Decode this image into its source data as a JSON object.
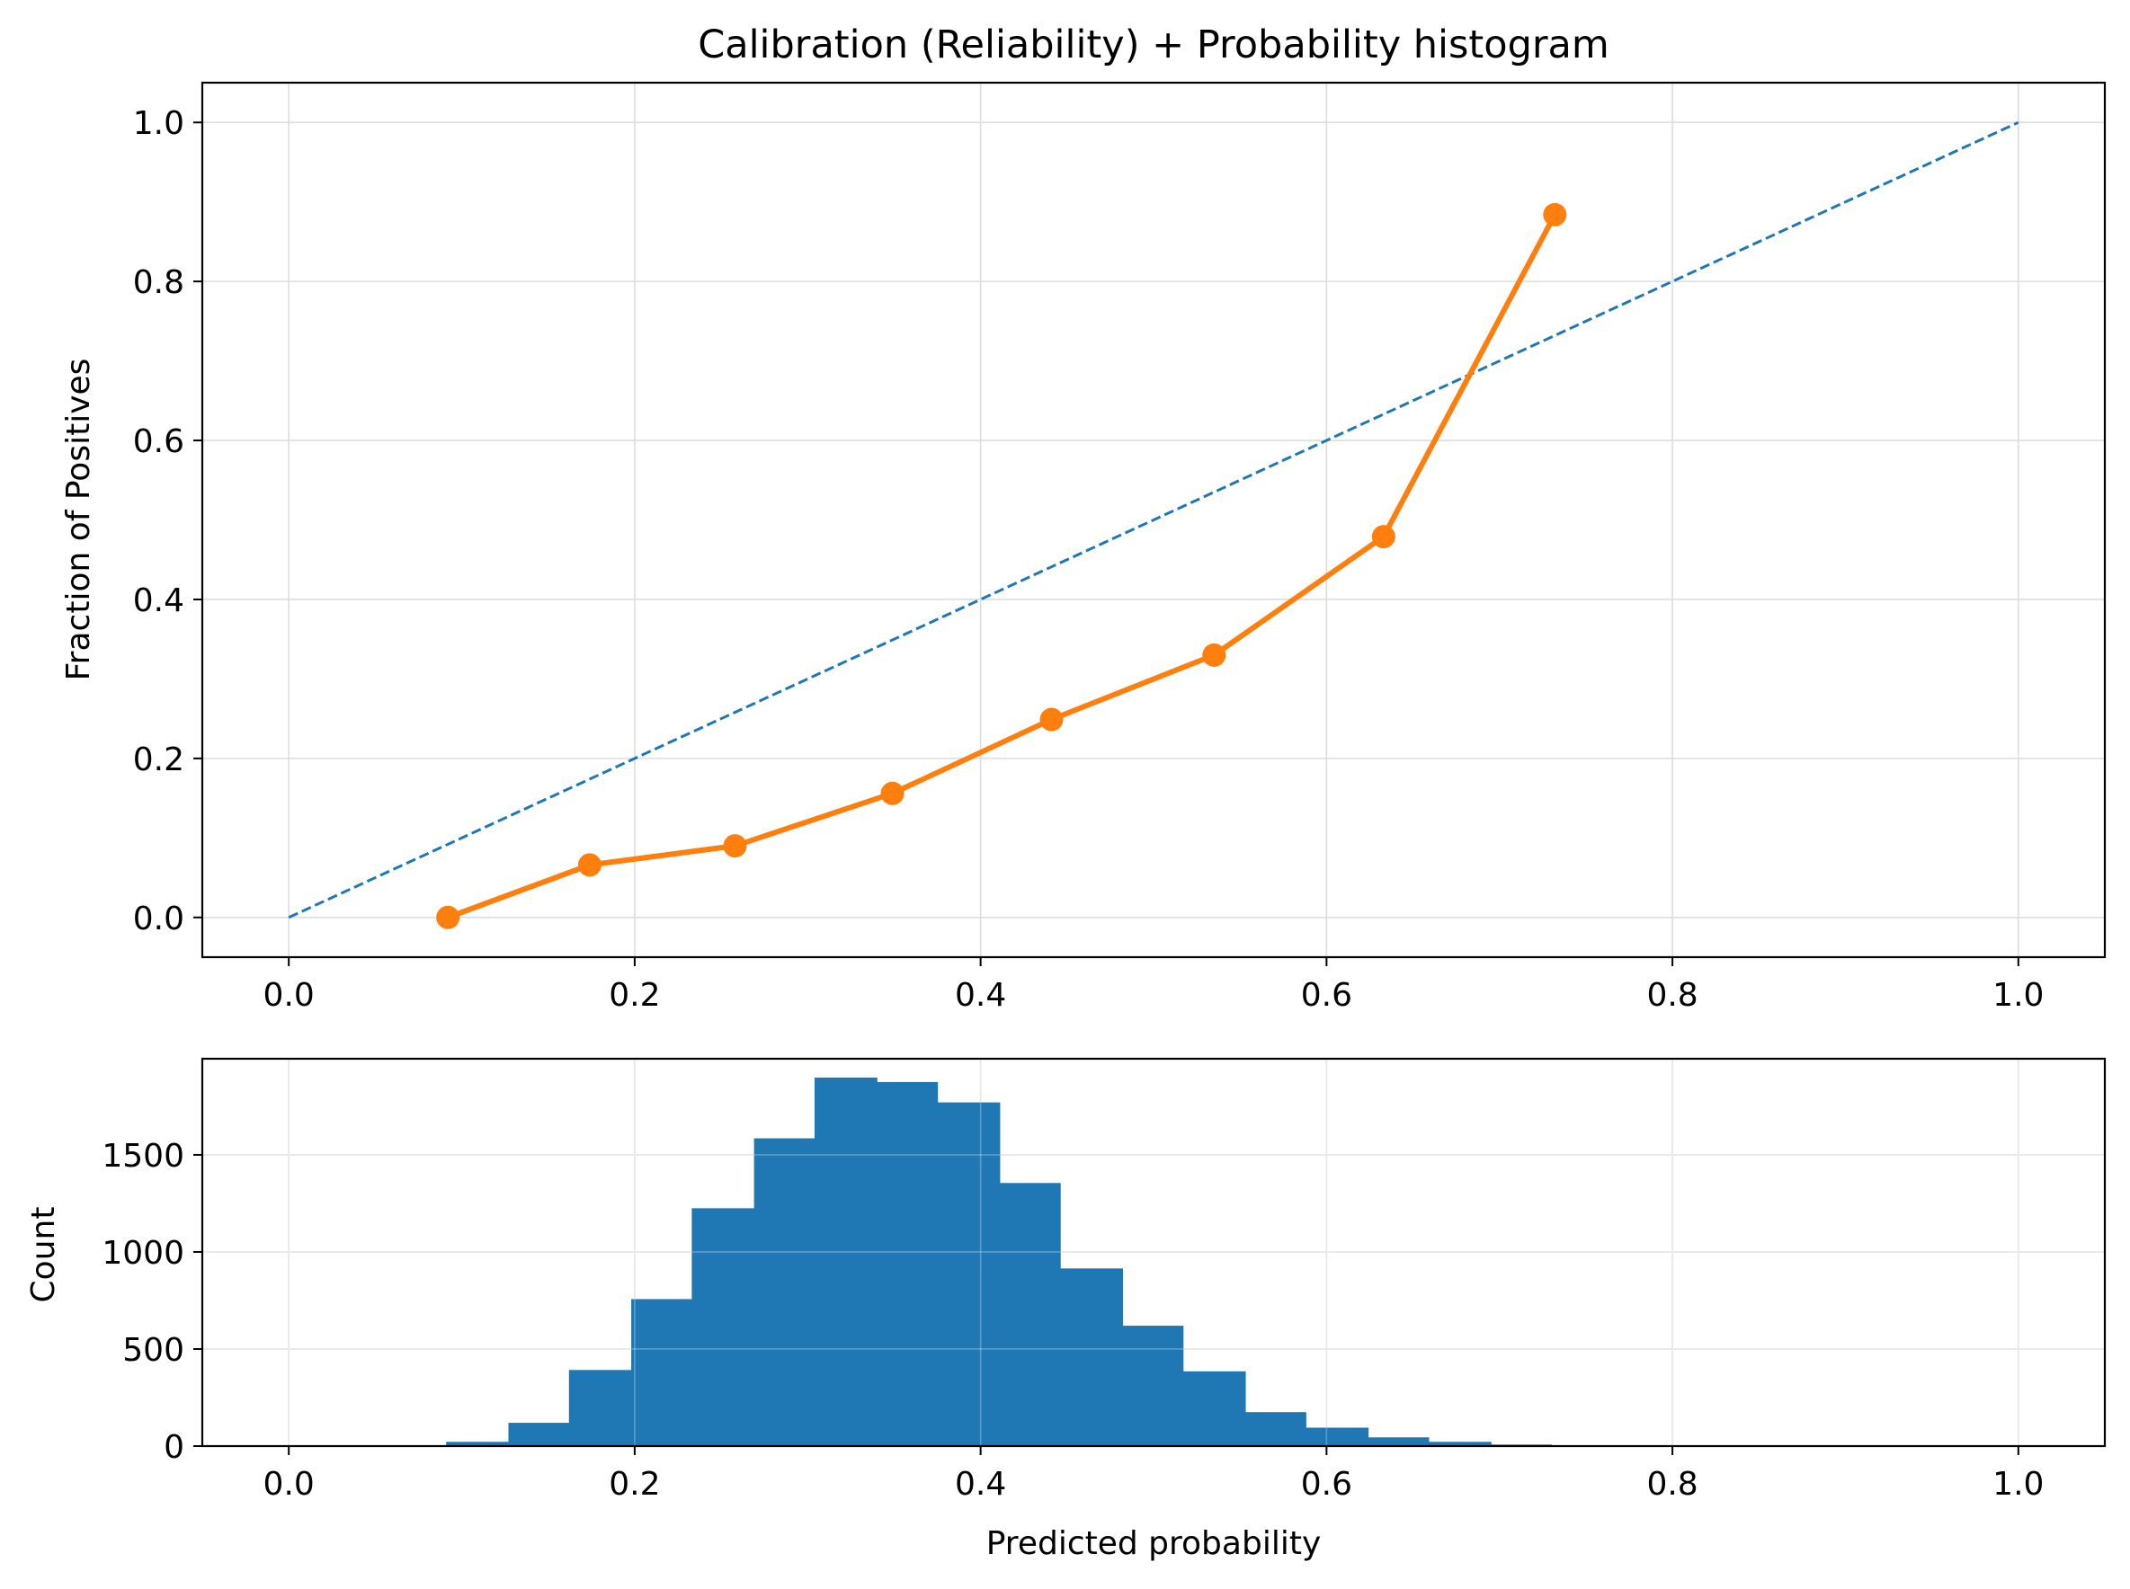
{
  "chart_data": [
    {
      "type": "line",
      "title": "Calibration (Reliability) + Probability histogram",
      "xlabel": "",
      "ylabel": "Fraction of Positives",
      "xlim": [
        -0.05,
        1.05
      ],
      "ylim": [
        -0.05,
        1.05
      ],
      "xticks": [
        "0.0",
        "0.2",
        "0.4",
        "0.6",
        "0.8",
        "1.0"
      ],
      "yticks": [
        "0.0",
        "0.2",
        "0.4",
        "0.6",
        "0.8",
        "1.0"
      ],
      "grid": true,
      "legend": "none",
      "series": [
        {
          "style": "dashed",
          "color": "#1f77b4",
          "x": [
            0.0,
            1.0
          ],
          "y": [
            0.0,
            1.0
          ]
        },
        {
          "style": "solid-with-markers",
          "color": "#ff7f0e",
          "x": [
            0.092,
            0.174,
            0.258,
            0.349,
            0.441,
            0.535,
            0.633,
            0.732
          ],
          "y": [
            0.0,
            0.066,
            0.09,
            0.156,
            0.249,
            0.33,
            0.479,
            0.884
          ]
        }
      ]
    },
    {
      "type": "bar",
      "subtype": "histogram",
      "title": "",
      "xlabel": "Predicted probability",
      "ylabel": "Count",
      "xlim": [
        -0.05,
        1.05
      ],
      "ylim": [
        0,
        1995
      ],
      "xticks": [
        "0.0",
        "0.2",
        "0.4",
        "0.6",
        "0.8",
        "1.0"
      ],
      "yticks": [
        "0",
        "500",
        "1000",
        "1500"
      ],
      "grid": true,
      "color": "#1f77b4",
      "bins": [
        [
          0.091,
          0.127,
          22
        ],
        [
          0.127,
          0.162,
          120
        ],
        [
          0.162,
          0.198,
          392
        ],
        [
          0.198,
          0.233,
          757
        ],
        [
          0.233,
          0.269,
          1225
        ],
        [
          0.269,
          0.304,
          1585
        ],
        [
          0.304,
          0.34,
          1898
        ],
        [
          0.34,
          0.375,
          1875
        ],
        [
          0.375,
          0.411,
          1770
        ],
        [
          0.411,
          0.446,
          1355
        ],
        [
          0.446,
          0.482,
          915
        ],
        [
          0.482,
          0.517,
          620
        ],
        [
          0.517,
          0.553,
          385
        ],
        [
          0.553,
          0.588,
          175
        ],
        [
          0.588,
          0.624,
          95
        ],
        [
          0.624,
          0.659,
          45
        ],
        [
          0.659,
          0.695,
          22
        ],
        [
          0.695,
          0.73,
          8
        ]
      ]
    }
  ]
}
